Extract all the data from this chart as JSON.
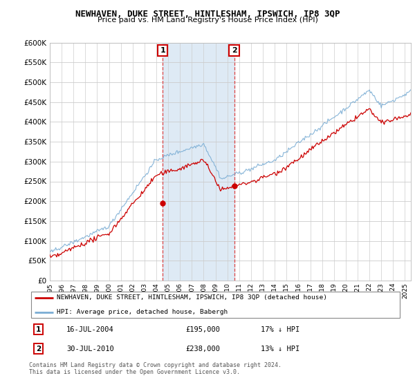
{
  "title": "NEWHAVEN, DUKE STREET, HINTLESHAM, IPSWICH, IP8 3QP",
  "subtitle": "Price paid vs. HM Land Registry's House Price Index (HPI)",
  "ylim": [
    0,
    600000
  ],
  "ytick_values": [
    0,
    50000,
    100000,
    150000,
    200000,
    250000,
    300000,
    350000,
    400000,
    450000,
    500000,
    550000,
    600000
  ],
  "xlim_start": 1995.0,
  "xlim_end": 2025.5,
  "sale1_x": 2004.54,
  "sale1_y": 195000,
  "sale1_label": "1",
  "sale2_x": 2010.58,
  "sale2_y": 238000,
  "sale2_label": "2",
  "legend_line1": "NEWHAVEN, DUKE STREET, HINTLESHAM, IPSWICH, IP8 3QP (detached house)",
  "legend_line2": "HPI: Average price, detached house, Babergh",
  "table_row1": [
    "1",
    "16-JUL-2004",
    "£195,000",
    "17% ↓ HPI"
  ],
  "table_row2": [
    "2",
    "30-JUL-2010",
    "£238,000",
    "13% ↓ HPI"
  ],
  "footer": "Contains HM Land Registry data © Crown copyright and database right 2024.\nThis data is licensed under the Open Government Licence v3.0.",
  "hpi_color": "#7aadd4",
  "price_color": "#cc0000",
  "shade_color": "#deeaf5",
  "background_color": "#ffffff",
  "grid_color": "#cccccc",
  "sale_box_color": "#cc0000",
  "vline_color": "#dd4444"
}
